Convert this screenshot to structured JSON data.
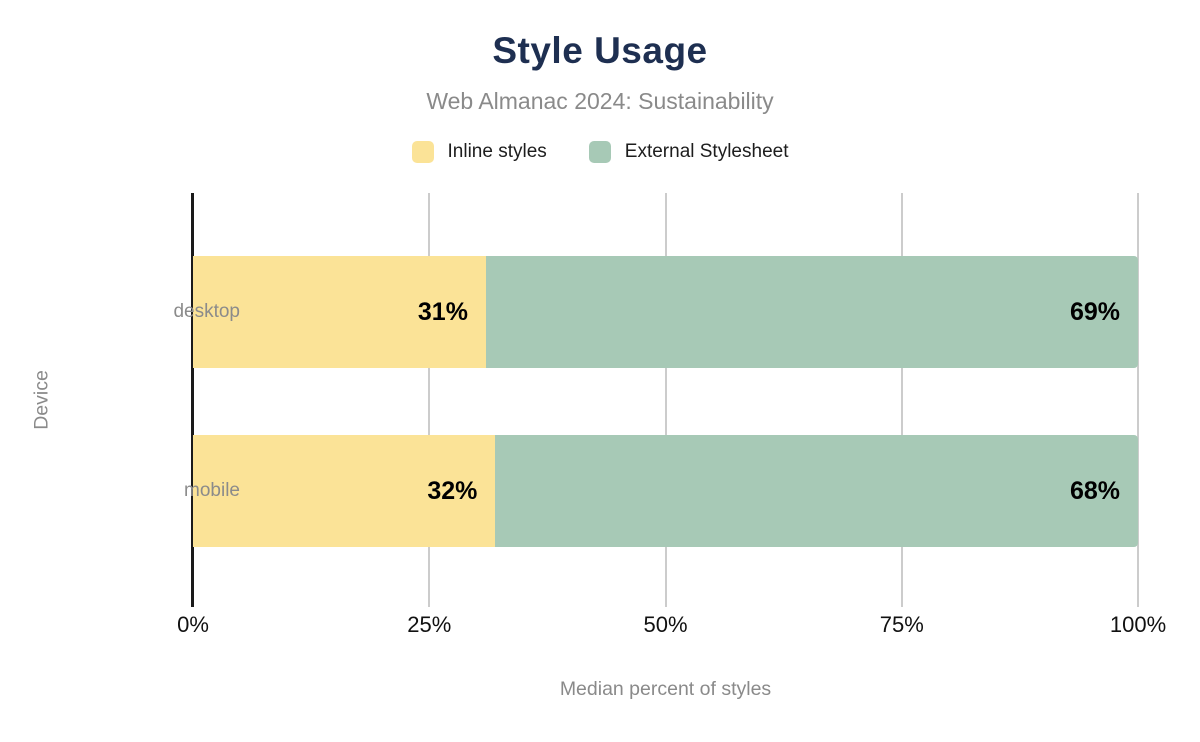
{
  "header": {
    "title": "Style Usage",
    "subtitle": "Web Almanac 2024: Sustainability"
  },
  "chart_data": {
    "type": "bar",
    "orientation": "horizontal",
    "stacked": true,
    "title": "Style Usage",
    "subtitle": "Web Almanac 2024: Sustainability",
    "categories": [
      "desktop",
      "mobile"
    ],
    "series": [
      {
        "name": "Inline styles",
        "color": "#fbe397",
        "values": [
          31,
          32
        ]
      },
      {
        "name": "External Stylesheet",
        "color": "#a7c9b6",
        "values": [
          69,
          68
        ]
      }
    ],
    "value_label_format": "{v}%",
    "x_ticks": [
      "0%",
      "25%",
      "50%",
      "75%",
      "100%"
    ],
    "x_tick_values": [
      0,
      25,
      50,
      75,
      100
    ],
    "xlim": [
      0,
      100
    ],
    "xlabel": "Median percent of styles",
    "ylabel": "Device",
    "grid": true,
    "legend_position": "top"
  },
  "colors": {
    "title": "#1e2f51",
    "subtitle": "#8a8a8a",
    "category_label": "#8b8b8b",
    "tick_label": "#111111",
    "gridline": "#cccccc",
    "axis_line": "#1a1a1a",
    "data_label": "#000000",
    "background": "#ffffff"
  }
}
